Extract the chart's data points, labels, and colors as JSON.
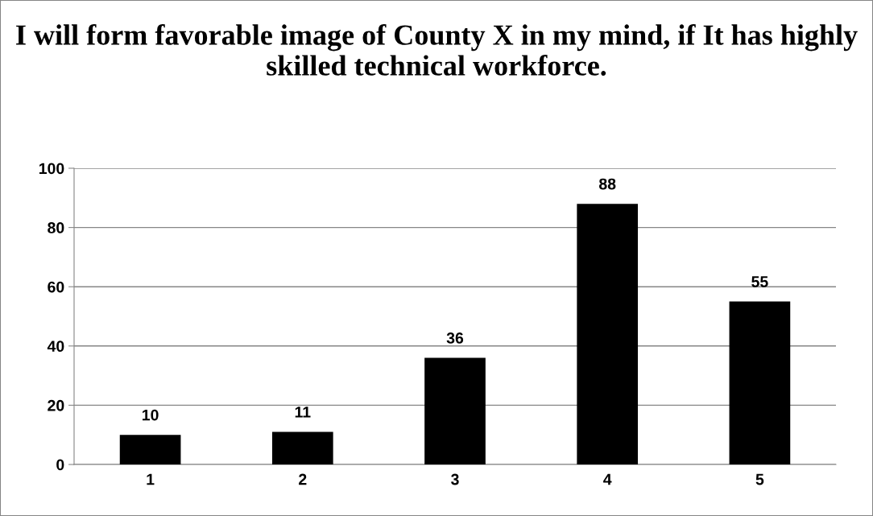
{
  "chart_data": {
    "type": "bar",
    "title": "I will form favorable image of County X in my mind, if It has highly skilled technical workforce.",
    "categories": [
      "1",
      "2",
      "3",
      "4",
      "5"
    ],
    "values": [
      10,
      11,
      36,
      88,
      55
    ],
    "color": "#000000",
    "ylim": [
      0,
      100
    ],
    "yticks": [
      0,
      20,
      40,
      60,
      80,
      100
    ],
    "grid": "y",
    "data_labels": true,
    "legend": false
  }
}
